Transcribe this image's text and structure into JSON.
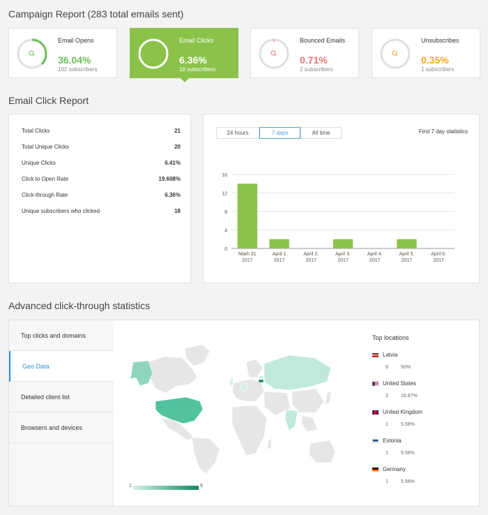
{
  "campaign": {
    "title": "Campaign Report (283 total emails sent)"
  },
  "stats": [
    {
      "label": "Email Opens",
      "value": "36.04%",
      "sub": "102 subscribers",
      "color": "#6bbf59",
      "fraction": 0.3604
    },
    {
      "label": "Email Clicks",
      "value": "6.36%",
      "sub": "18 subscribers",
      "color": "#ffffff",
      "fraction": 0.0636
    },
    {
      "label": "Bounced Emails",
      "value": "0.71%",
      "sub": "2 subscribers",
      "color": "#e57373",
      "fraction": 0.0071
    },
    {
      "label": "Unsubscribes",
      "value": "0.35%",
      "sub": "1 subscribers",
      "color": "#f5a623",
      "fraction": 0.0035
    }
  ],
  "click_report": {
    "title": "Email Click Report",
    "rows": [
      {
        "label": "Total Clicks",
        "value": "21"
      },
      {
        "label": "Total Unique Clicks",
        "value": "20"
      },
      {
        "label": "Unique Clicks",
        "value": "6.41%"
      },
      {
        "label": "Click to Open Rate",
        "value": "19.608%"
      },
      {
        "label": "Click-through Rate",
        "value": "6.36%"
      },
      {
        "label": "Unique subscribers who clicked",
        "value": "18"
      }
    ]
  },
  "chart_panel": {
    "tabs": [
      "24 hours",
      "7 days",
      "All time"
    ],
    "active_tab": 1,
    "caption": "First 7 day statistics"
  },
  "chart_data": {
    "type": "bar",
    "categories": [
      "Marh 31\n2017",
      "April 1\n2017",
      "April 2.\n2017",
      "April 3.\n2017",
      "April 4.\n2017",
      "April 5.\n2017",
      "April 6.\n2017"
    ],
    "values": [
      14,
      2,
      0,
      2,
      0,
      2,
      0
    ],
    "yticks": [
      "0",
      "4",
      "8",
      "12",
      "16"
    ],
    "ylim": [
      0,
      16
    ],
    "color": "#8bc34a",
    "grid": true
  },
  "advanced": {
    "title": "Advanced click-through statistics",
    "sidebar": [
      "Top clicks and domains",
      "Geo Data",
      "Detailed client list",
      "Browsers and devices"
    ],
    "active": 1,
    "legend_min": "1",
    "legend_max": "9",
    "top_locations_title": "Top locations",
    "locations": [
      {
        "name": "Latvia",
        "count": "9",
        "pct": "50%",
        "flag": "latvia-flag-icon"
      },
      {
        "name": "United States",
        "count": "3",
        "pct": "16.67%",
        "flag": "us-flag-icon"
      },
      {
        "name": "United Kingdom",
        "count": "1",
        "pct": "5.56%",
        "flag": "uk-flag-icon"
      },
      {
        "name": "Estonia",
        "count": "1",
        "pct": "5.56%",
        "flag": "estonia-flag-icon"
      },
      {
        "name": "Germany",
        "count": "1",
        "pct": "5.56%",
        "flag": "germany-flag-icon"
      }
    ]
  }
}
